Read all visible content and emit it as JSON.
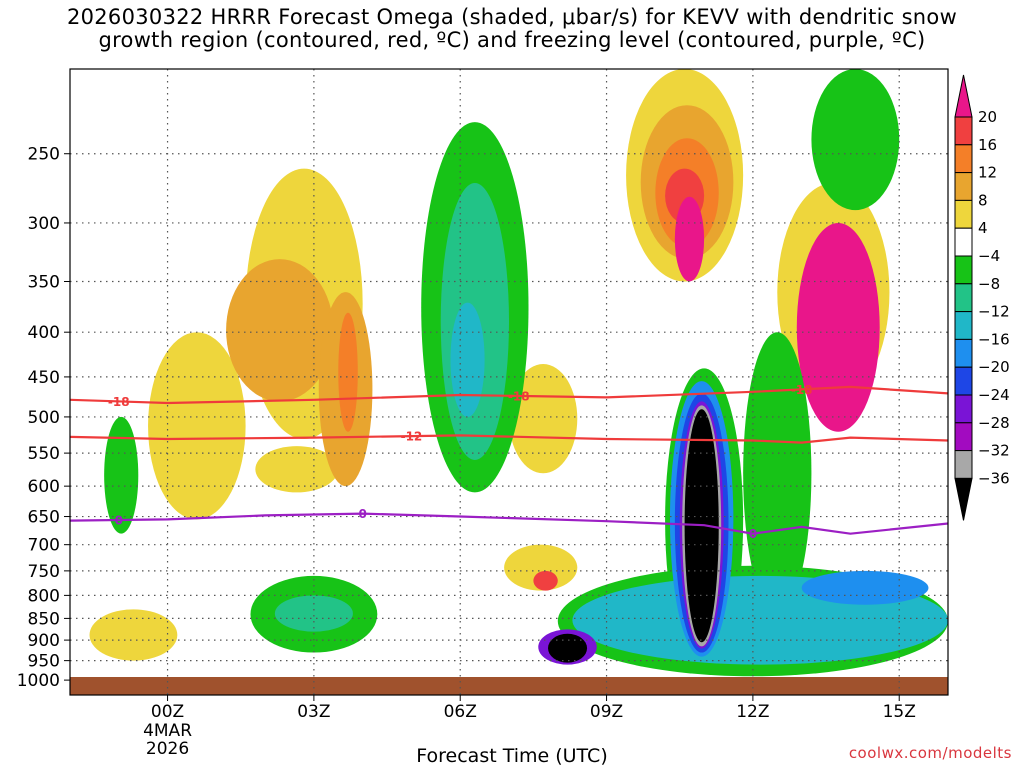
{
  "title": {
    "line1": "2026030322 HRRR Forecast Omega (shaded, μbar/s) for KEVV with dendritic snow",
    "line2": "growth region (contoured, red, ºC) and freezing level (contoured, purple, ºC)"
  },
  "credit": "coolwx.com/modelts",
  "colors": {
    "temp_contour": "#ef3b3b",
    "freezing_contour": "#9c1fc4",
    "ground": "#a0522d",
    "grid": "#555555"
  },
  "chart_data": {
    "type": "heatmap",
    "xlabel": "Forecast Time (UTC)",
    "ylabel": "",
    "x_ticks": [
      {
        "label": "00Z",
        "sub1": "4MAR",
        "sub2": "2026",
        "hour": 0
      },
      {
        "label": "03Z",
        "sub1": "",
        "sub2": "",
        "hour": 3
      },
      {
        "label": "06Z",
        "sub1": "",
        "sub2": "",
        "hour": 6
      },
      {
        "label": "09Z",
        "sub1": "",
        "sub2": "",
        "hour": 9
      },
      {
        "label": "12Z",
        "sub1": "",
        "sub2": "",
        "hour": 12
      },
      {
        "label": "15Z",
        "sub1": "",
        "sub2": "",
        "hour": 15
      }
    ],
    "xlim_hours": [
      -2,
      16
    ],
    "y_ticks": [
      {
        "label": "250",
        "p": 250
      },
      {
        "label": "300",
        "p": 300
      },
      {
        "label": "350",
        "p": 350
      },
      {
        "label": "400",
        "p": 400
      },
      {
        "label": "450",
        "p": 450
      },
      {
        "label": "500",
        "p": 500
      },
      {
        "label": "550",
        "p": 550
      },
      {
        "label": "600",
        "p": 600
      },
      {
        "label": "650",
        "p": 650
      },
      {
        "label": "700",
        "p": 700
      },
      {
        "label": "750",
        "p": 750
      },
      {
        "label": "800",
        "p": 800
      },
      {
        "label": "850",
        "p": 850
      },
      {
        "label": "900",
        "p": 900
      },
      {
        "label": "950",
        "p": 950
      },
      {
        "label": "1000",
        "p": 1000
      }
    ],
    "ylim_hPa": [
      200,
      1040
    ],
    "y_scale": "log",
    "grid": true,
    "colorbar": {
      "labels": [
        "20",
        "16",
        "12",
        "8",
        "4",
        "−4",
        "−8",
        "−12",
        "−16",
        "−20",
        "−24",
        "−28",
        "−32",
        "−36"
      ],
      "colors": [
        "#e9168a",
        "#f04040",
        "#f47f28",
        "#e8a52f",
        "#eed63c",
        "#ffffff",
        "#17c317",
        "#22c387",
        "#20b7c8",
        "#1e8fef",
        "#1e46e6",
        "#7a14d6",
        "#a20bc0",
        "#a8a8a8",
        "#000000"
      ]
    },
    "contours": [
      {
        "name": "-18",
        "color": "#ef3b3b",
        "points": [
          [
            -2,
            478
          ],
          [
            0,
            482
          ],
          [
            3,
            478
          ],
          [
            6,
            472
          ],
          [
            9,
            475
          ],
          [
            12,
            468
          ],
          [
            14,
            462
          ],
          [
            16,
            470
          ]
        ],
        "labels": [
          {
            "text": "-18",
            "hour": -1.0
          },
          {
            "text": "-18",
            "hour": 7.2
          },
          {
            "text": "-18",
            "hour": 13.0
          }
        ]
      },
      {
        "name": "-12",
        "color": "#ef3b3b",
        "points": [
          [
            -2,
            527
          ],
          [
            0,
            530
          ],
          [
            3,
            528
          ],
          [
            6,
            525
          ],
          [
            9,
            530
          ],
          [
            12,
            532
          ],
          [
            13,
            535
          ],
          [
            14,
            528
          ],
          [
            16,
            532
          ]
        ],
        "labels": [
          {
            "text": "-12",
            "hour": 5.0
          }
        ]
      },
      {
        "name": "0",
        "color": "#9c1fc4",
        "points": [
          [
            -2,
            657
          ],
          [
            0,
            655
          ],
          [
            2,
            648
          ],
          [
            4,
            645
          ],
          [
            6,
            650
          ],
          [
            9,
            658
          ],
          [
            11,
            665
          ],
          [
            12,
            680
          ],
          [
            13,
            668
          ],
          [
            14,
            680
          ],
          [
            16,
            662
          ]
        ],
        "labels": [
          {
            "text": "0",
            "hour": -1.0
          },
          {
            "text": "0",
            "hour": 4.0
          },
          {
            "text": "0",
            "hour": 12.0
          }
        ]
      }
    ],
    "omega_regions": [
      {
        "level": "4",
        "hour0": -0.4,
        "hour1": 1.6,
        "p0": 400,
        "p1": 655
      },
      {
        "level": "4",
        "hour0": 1.6,
        "hour1": 4.0,
        "p0": 260,
        "p1": 530
      },
      {
        "level": "4",
        "hour0": 1.8,
        "hour1": 3.5,
        "p0": 540,
        "p1": 610
      },
      {
        "level": "4",
        "hour0": -1.6,
        "hour1": 0.2,
        "p0": 830,
        "p1": 950
      },
      {
        "level": "4",
        "hour0": 9.4,
        "hour1": 11.8,
        "p0": 200,
        "p1": 350
      },
      {
        "level": "4",
        "hour0": 12.5,
        "hour1": 14.8,
        "p0": 270,
        "p1": 480
      },
      {
        "level": "4",
        "hour0": 7.0,
        "hour1": 8.4,
        "p0": 435,
        "p1": 580
      },
      {
        "level": "4",
        "hour0": 6.9,
        "hour1": 8.4,
        "p0": 700,
        "p1": 790
      },
      {
        "level": "8",
        "hour0": 1.2,
        "hour1": 3.4,
        "p0": 330,
        "p1": 480
      },
      {
        "level": "8",
        "hour0": 3.1,
        "hour1": 4.2,
        "p0": 360,
        "p1": 600
      },
      {
        "level": "8",
        "hour0": 9.7,
        "hour1": 11.6,
        "p0": 220,
        "p1": 330
      },
      {
        "level": "12",
        "hour0": 10.0,
        "hour1": 11.3,
        "p0": 240,
        "p1": 320
      },
      {
        "level": "12",
        "hour0": 3.5,
        "hour1": 3.9,
        "p0": 380,
        "p1": 520
      },
      {
        "level": "16",
        "hour0": 10.2,
        "hour1": 11.0,
        "p0": 260,
        "p1": 300
      },
      {
        "level": "16",
        "hour0": 7.5,
        "hour1": 8.0,
        "p0": 750,
        "p1": 790
      },
      {
        "level": "20",
        "hour0": 10.4,
        "hour1": 11.0,
        "p0": 280,
        "p1": 350
      },
      {
        "level": "20",
        "hour0": 12.9,
        "hour1": 14.6,
        "p0": 300,
        "p1": 520
      },
      {
        "level": "-8",
        "hour0": 5.2,
        "hour1": 7.4,
        "p0": 230,
        "p1": 610
      },
      {
        "level": "-8",
        "hour0": -1.3,
        "hour1": -0.6,
        "p0": 500,
        "p1": 680
      },
      {
        "level": "-8",
        "hour0": 1.7,
        "hour1": 4.3,
        "p0": 760,
        "p1": 930
      },
      {
        "level": "-8",
        "hour0": 13.2,
        "hour1": 15.0,
        "p0": 200,
        "p1": 290
      },
      {
        "level": "-8",
        "hour0": 8.0,
        "hour1": 16.0,
        "p0": 740,
        "p1": 990
      },
      {
        "level": "-8",
        "hour0": 10.2,
        "hour1": 11.8,
        "p0": 440,
        "p1": 980
      },
      {
        "level": "-8",
        "hour0": 11.8,
        "hour1": 13.2,
        "p0": 400,
        "p1": 840
      },
      {
        "level": "-12",
        "hour0": 5.6,
        "hour1": 7.0,
        "p0": 270,
        "p1": 560
      },
      {
        "level": "-12",
        "hour0": 2.2,
        "hour1": 3.8,
        "p0": 800,
        "p1": 880
      },
      {
        "level": "-16",
        "hour0": 5.8,
        "hour1": 6.5,
        "p0": 370,
        "p1": 500
      },
      {
        "level": "-16",
        "hour0": 8.3,
        "hour1": 16.0,
        "p0": 760,
        "p1": 960
      },
      {
        "level": "-20",
        "hour0": 10.3,
        "hour1": 11.6,
        "p0": 455,
        "p1": 940
      },
      {
        "level": "-20",
        "hour0": 13.0,
        "hour1": 15.6,
        "p0": 750,
        "p1": 820
      },
      {
        "level": "-24",
        "hour0": 10.4,
        "hour1": 11.5,
        "p0": 470,
        "p1": 930
      },
      {
        "level": "-28",
        "hour0": 10.5,
        "hour1": 11.4,
        "p0": 480,
        "p1": 920
      },
      {
        "level": "-28",
        "hour0": 7.6,
        "hour1": 8.8,
        "p0": 875,
        "p1": 960
      },
      {
        "level": "-32",
        "hour0": 10.55,
        "hour1": 11.35,
        "p0": 485,
        "p1": 915
      },
      {
        "level": "-36",
        "hour0": 10.6,
        "hour1": 11.3,
        "p0": 490,
        "p1": 905
      },
      {
        "level": "-36",
        "hour0": 7.8,
        "hour1": 8.6,
        "p0": 885,
        "p1": 955
      }
    ]
  }
}
